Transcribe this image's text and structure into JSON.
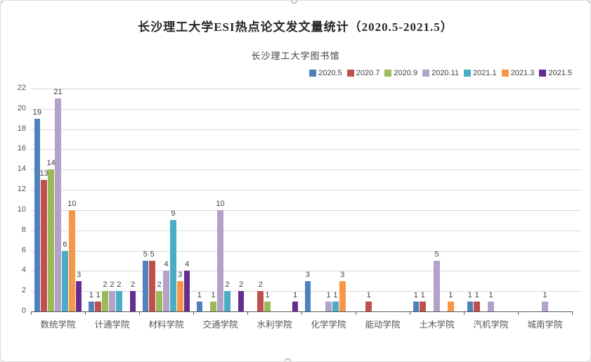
{
  "selection": {
    "handles": [
      "top-center",
      "bottom-center",
      "top-left",
      "top-right"
    ]
  },
  "chart_data": {
    "type": "bar",
    "title": "长沙理工大学ESI热点论文发文量统计（2020.5-2021.5）",
    "subtitle": "长沙理工大学图书馆",
    "xlabel": "",
    "ylabel": "",
    "ylim": [
      0,
      22
    ],
    "ystep": 2,
    "grid": true,
    "legend_position": "top-right",
    "data_labels": true,
    "categories": [
      "数统学院",
      "计通学院",
      "材料学院",
      "交通学院",
      "水利学院",
      "化学学院",
      "能动学院",
      "土木学院",
      "汽机学院",
      "城南学院"
    ],
    "series": [
      {
        "name": "2020.5",
        "color": "#4f81bd",
        "values": [
          19,
          1,
          5,
          1,
          0,
          3,
          0,
          1,
          1,
          0
        ]
      },
      {
        "name": "2020.7",
        "color": "#c0504d",
        "values": [
          13,
          1,
          5,
          0,
          2,
          0,
          1,
          1,
          1,
          0
        ]
      },
      {
        "name": "2020.9",
        "color": "#9bbb59",
        "values": [
          14,
          2,
          2,
          1,
          1,
          0,
          0,
          0,
          0,
          0
        ]
      },
      {
        "name": "2020.11",
        "color": "#b2a2c7",
        "values": [
          21,
          2,
          4,
          10,
          0,
          1,
          0,
          5,
          1,
          1
        ]
      },
      {
        "name": "2021.1",
        "color": "#4bacc6",
        "values": [
          6,
          2,
          9,
          2,
          0,
          1,
          0,
          0,
          0,
          0
        ]
      },
      {
        "name": "2021.3",
        "color": "#f79646",
        "values": [
          10,
          0,
          3,
          0,
          0,
          3,
          0,
          1,
          0,
          0
        ]
      },
      {
        "name": "2021.5",
        "color": "#662d91",
        "values": [
          3,
          2,
          4,
          2,
          1,
          0,
          0,
          0,
          0,
          0
        ]
      }
    ]
  }
}
